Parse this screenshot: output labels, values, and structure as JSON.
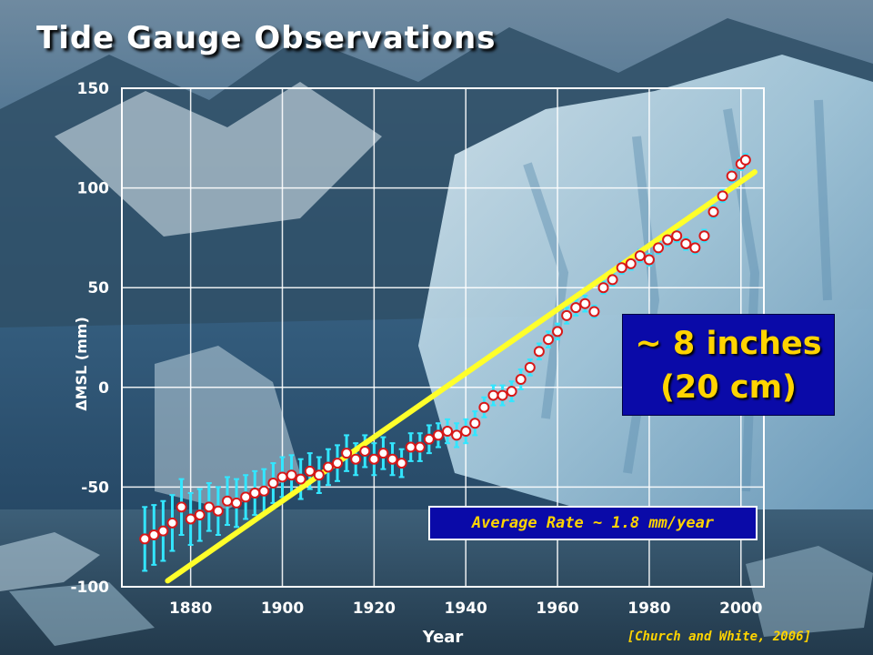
{
  "title": "Tide Gauge Observations",
  "callout": {
    "line1": "~ 8 inches",
    "line2": "(20 cm)"
  },
  "rate_box": "Average Rate ~ 1.8 mm/year",
  "source": "[Church and White, 2006]",
  "colors": {
    "background_sky": "#3a6688",
    "glacier_ice": "#b8d6e6",
    "grid": "#ffffff",
    "error_bars": "#33e6ff",
    "points_fill": "#ffffff",
    "points_edge": "#d81818",
    "trend_line": "#ffff2a",
    "callout_bg": "#0a0aa8",
    "callout_text": "#ffd400"
  },
  "chart_data": {
    "type": "scatter",
    "title": "Tide Gauge Observations",
    "xlabel": "Year",
    "ylabel": "ΔMSL (mm)",
    "xlim": [
      1865,
      2005
    ],
    "ylim": [
      -100,
      150
    ],
    "x_ticks": [
      1880,
      1900,
      1920,
      1940,
      1960,
      1980,
      2000
    ],
    "y_ticks": [
      -100,
      -50,
      0,
      50,
      100,
      150
    ],
    "grid": true,
    "series": [
      {
        "kind": "observations_with_error_bars",
        "x": [
          1870,
          1872,
          1874,
          1876,
          1878,
          1880,
          1882,
          1884,
          1886,
          1888,
          1890,
          1892,
          1894,
          1896,
          1898,
          1900,
          1902,
          1904,
          1906,
          1908,
          1910,
          1912,
          1914,
          1916,
          1918,
          1920,
          1922,
          1924,
          1926,
          1928,
          1930,
          1932,
          1934,
          1936,
          1938,
          1940,
          1942,
          1944,
          1946,
          1948,
          1950,
          1952,
          1954,
          1956,
          1958,
          1960,
          1962,
          1964,
          1966,
          1968,
          1970,
          1972,
          1974,
          1976,
          1978,
          1980,
          1982,
          1984,
          1986,
          1988,
          1990,
          1992,
          1994,
          1996,
          1998,
          2000,
          2001
        ],
        "y": [
          -76,
          -74,
          -72,
          -68,
          -60,
          -66,
          -64,
          -60,
          -62,
          -57,
          -58,
          -55,
          -53,
          -52,
          -48,
          -45,
          -44,
          -46,
          -42,
          -44,
          -40,
          -38,
          -33,
          -36,
          -32,
          -36,
          -33,
          -36,
          -38,
          -30,
          -30,
          -26,
          -24,
          -22,
          -24,
          -22,
          -18,
          -10,
          -4,
          -4,
          -2,
          4,
          10,
          18,
          24,
          28,
          36,
          40,
          42,
          38,
          50,
          54,
          60,
          62,
          66,
          64,
          70,
          74,
          76,
          72,
          70,
          76,
          88,
          96,
          106,
          112,
          114
        ],
        "err": [
          16,
          15,
          15,
          14,
          14,
          13,
          13,
          12,
          12,
          12,
          12,
          11,
          11,
          11,
          10,
          10,
          10,
          10,
          9,
          9,
          9,
          9,
          9,
          8,
          8,
          8,
          8,
          8,
          7,
          7,
          7,
          7,
          6,
          6,
          6,
          6,
          6,
          5,
          5,
          5,
          5,
          5,
          4,
          4,
          4,
          4,
          4,
          4,
          4,
          3,
          3,
          3,
          3,
          3,
          3,
          3,
          3,
          3,
          3,
          3,
          3,
          3,
          3,
          3,
          3,
          3,
          3
        ]
      },
      {
        "kind": "trend_line",
        "x": [
          1875,
          2003
        ],
        "y": [
          -97,
          108
        ]
      }
    ]
  }
}
